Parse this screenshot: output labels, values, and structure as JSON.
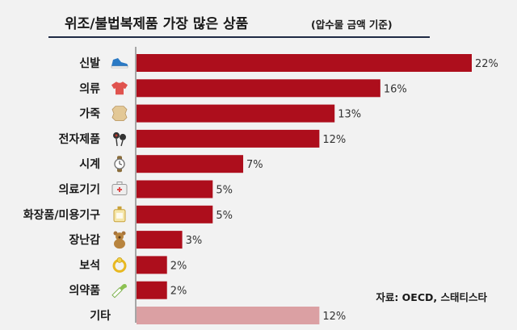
{
  "colors": {
    "bar": "#ad0e1c",
    "bar_other": "#dba0a3",
    "title_underline": "#1f2a44",
    "axis": "#8c8c8c",
    "background": "#f2f2f2"
  },
  "source": "자료: OECD, 스태티스타",
  "chart_data": {
    "type": "bar",
    "orientation": "horizontal",
    "title": "위조/불법복제품 가장 많은 상품",
    "subtitle": "(압수물 금액 기준)",
    "categories": [
      "신발",
      "의류",
      "가죽",
      "전자제품",
      "시계",
      "의료기기",
      "화장품/미용기구",
      "장난감",
      "보석",
      "의약품",
      "기타"
    ],
    "values": [
      22,
      16,
      13,
      12,
      7,
      5,
      5,
      3,
      2,
      2,
      12
    ],
    "value_labels": [
      "22%",
      "16%",
      "13%",
      "12%",
      "7%",
      "5%",
      "5%",
      "3%",
      "2%",
      "2%",
      "12%"
    ],
    "icons": [
      "sneaker-icon",
      "shirt-icon",
      "leather-hide-icon",
      "earphones-icon",
      "wristwatch-icon",
      "medical-kit-icon",
      "perfume-bottle-icon",
      "teddy-bear-icon",
      "jewel-ring-icon",
      "pill-capsule-icon",
      null
    ],
    "unit": "%",
    "xlim": [
      0,
      22
    ],
    "grid": false,
    "legend": "none"
  }
}
